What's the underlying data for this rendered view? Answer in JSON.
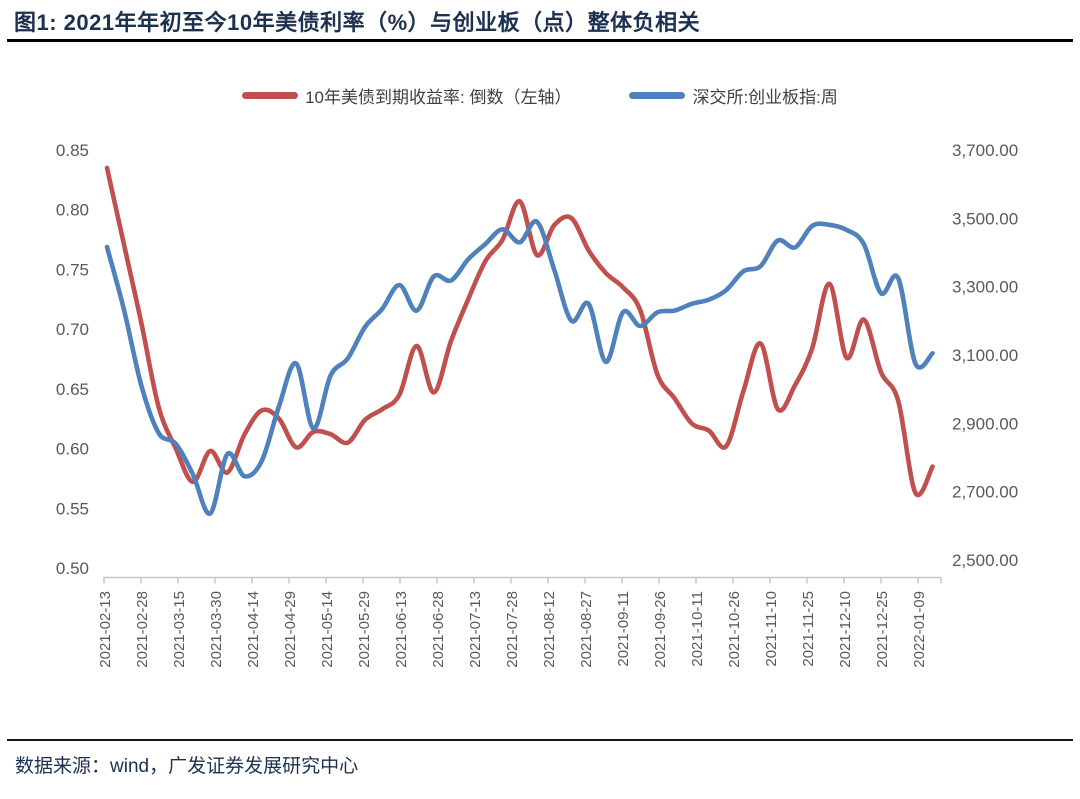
{
  "figure": {
    "title": "图1:  2021年年初至今10年美债利率（%）与创业板（点）整体负相关"
  },
  "legend": [
    {
      "label": "10年美债到期收益率: 倒数（左轴）",
      "color": "#c0504d"
    },
    {
      "label": "深交所:创业板指:周",
      "color": "#4f81bd"
    }
  ],
  "footer": {
    "source": "数据来源：wind，广发证券发展研究中心"
  },
  "chart_data": {
    "type": "line",
    "title": "2021年年初至今10年美债利率（%）与创业板（点）整体负相关",
    "grid": false,
    "legend_position": "top-center",
    "x": [
      "2021-02-13",
      "2021-02-20",
      "2021-02-27",
      "2021-03-06",
      "2021-03-13",
      "2021-03-20",
      "2021-03-27",
      "2021-04-03",
      "2021-04-10",
      "2021-04-17",
      "2021-04-24",
      "2021-05-01",
      "2021-05-08",
      "2021-05-15",
      "2021-05-22",
      "2021-05-29",
      "2021-06-05",
      "2021-06-12",
      "2021-06-19",
      "2021-06-26",
      "2021-07-03",
      "2021-07-10",
      "2021-07-17",
      "2021-07-24",
      "2021-07-31",
      "2021-08-07",
      "2021-08-14",
      "2021-08-21",
      "2021-08-28",
      "2021-09-04",
      "2021-09-11",
      "2021-09-18",
      "2021-09-25",
      "2021-10-02",
      "2021-10-09",
      "2021-10-16",
      "2021-10-23",
      "2021-10-30",
      "2021-11-06",
      "2021-11-13",
      "2021-11-20",
      "2021-11-27",
      "2021-12-04",
      "2021-12-11",
      "2021-12-18",
      "2021-12-25",
      "2022-01-01",
      "2022-01-08",
      "2022-01-15"
    ],
    "x_tick_labels": [
      "2021-02-13",
      "2021-02-28",
      "2021-03-15",
      "2021-03-30",
      "2021-04-14",
      "2021-04-29",
      "2021-05-14",
      "2021-05-29",
      "2021-06-13",
      "2021-06-28",
      "2021-07-13",
      "2021-07-28",
      "2021-08-12",
      "2021-08-27",
      "2021-09-11",
      "2021-09-26",
      "2021-10-11",
      "2021-10-26",
      "2021-11-10",
      "2021-11-25",
      "2021-12-10",
      "2021-12-25",
      "2022-01-09"
    ],
    "series": [
      {
        "name": "10年美债到期收益率: 倒数（左轴）",
        "axis": "left",
        "color": "#c0504d",
        "values": [
          0.835,
          0.77,
          0.705,
          0.635,
          0.6,
          0.572,
          0.598,
          0.58,
          0.612,
          0.632,
          0.625,
          0.601,
          0.614,
          0.612,
          0.605,
          0.624,
          0.633,
          0.645,
          0.686,
          0.647,
          0.69,
          0.725,
          0.757,
          0.775,
          0.807,
          0.762,
          0.787,
          0.793,
          0.766,
          0.747,
          0.735,
          0.716,
          0.662,
          0.642,
          0.621,
          0.615,
          0.602,
          0.648,
          0.688,
          0.633,
          0.653,
          0.684,
          0.738,
          0.676,
          0.708,
          0.664,
          0.64,
          0.563,
          0.585
        ]
      },
      {
        "name": "深交所:创业板指:周",
        "axis": "right",
        "color": "#4f81bd",
        "values": [
          3416,
          3230,
          3010,
          2872,
          2840,
          2750,
          2636,
          2810,
          2745,
          2790,
          2950,
          3075,
          2885,
          3040,
          3090,
          3182,
          3235,
          3305,
          3230,
          3330,
          3318,
          3380,
          3425,
          3468,
          3430,
          3490,
          3350,
          3200,
          3250,
          3080,
          3225,
          3185,
          3225,
          3230,
          3250,
          3262,
          3290,
          3345,
          3360,
          3435,
          3415,
          3478,
          3481,
          3466,
          3425,
          3281,
          3325,
          3075,
          3105
        ]
      }
    ],
    "left_axis": {
      "ticks": [
        "0.85",
        "0.80",
        "0.75",
        "0.70",
        "0.65",
        "0.60",
        "0.55",
        "0.50"
      ],
      "min": 0.5,
      "max": 0.85
    },
    "right_axis": {
      "ticks": [
        "3,700.00",
        "3,500.00",
        "3,300.00",
        "3,100.00",
        "2,900.00",
        "2,700.00",
        "2,500.00"
      ],
      "min": 2500,
      "max": 3700
    },
    "axis_text_color": "#595959",
    "axis_line_color": "#c8c8c8"
  }
}
